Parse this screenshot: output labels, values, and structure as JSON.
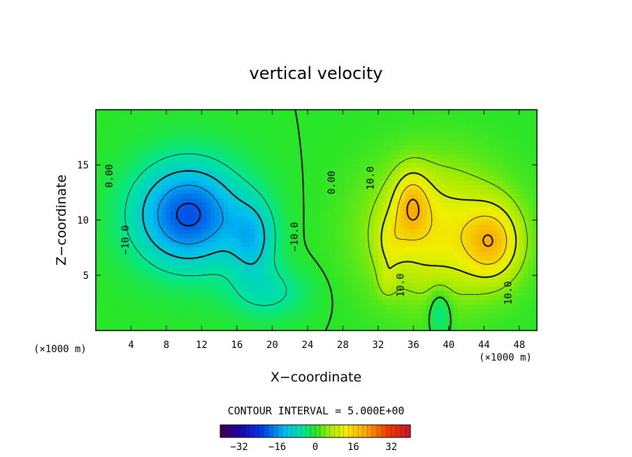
{
  "chart_data": {
    "type": "heatmap",
    "title": "vertical velocity",
    "xlabel": "X−coordinate",
    "ylabel": "Z−coordinate",
    "x_unit_left": "(×1000 m)",
    "x_unit_right": "(×1000 m)",
    "xlim": [
      0,
      50
    ],
    "ylim": [
      0,
      20
    ],
    "x_ticks": [
      4,
      8,
      12,
      16,
      20,
      24,
      28,
      32,
      36,
      40,
      44,
      48
    ],
    "y_ticks": [
      5,
      10,
      15
    ],
    "contour_interval_text": "CONTOUR INTERVAL = 5.000E+00",
    "contour_interval": 5,
    "contour_labels": [
      {
        "text": "0.00",
        "x": 1.6,
        "z": 14.0
      },
      {
        "text": "0.00",
        "x": 26.8,
        "z": 13.4
      },
      {
        "text": "−10.0",
        "x": 3.4,
        "z": 8.2
      },
      {
        "text": "−10.0",
        "x": 22.6,
        "z": 8.5
      },
      {
        "text": "10.0",
        "x": 31.2,
        "z": 13.8
      },
      {
        "text": "10.0",
        "x": 34.6,
        "z": 4.1
      },
      {
        "text": "10.0",
        "x": 46.8,
        "z": 3.4
      }
    ],
    "colorbar": {
      "min": -40,
      "max": 40,
      "ticks": [
        -32,
        -16,
        0,
        16,
        32
      ],
      "tick_labels": [
        "−32",
        "−16",
        "0",
        "16",
        "32"
      ]
    },
    "field_features": [
      {
        "sign": "negative",
        "x": 10,
        "z": 10.5,
        "peak": -22
      },
      {
        "sign": "negative",
        "x": 17,
        "z": 8.5,
        "peak": -14
      },
      {
        "sign": "positive",
        "x": 35.8,
        "z": 12.0,
        "peak": 24
      },
      {
        "sign": "positive",
        "x": 45.0,
        "z": 8.0,
        "peak": 26
      },
      {
        "sign": "positive",
        "x": 33.6,
        "z": 8.0,
        "peak": 16
      },
      {
        "sign": "positive",
        "x": 33.0,
        "z": 4.5,
        "peak": 14
      }
    ],
    "grid": false
  },
  "colors": {
    "background": "#ffffff",
    "axis": "#000000"
  }
}
